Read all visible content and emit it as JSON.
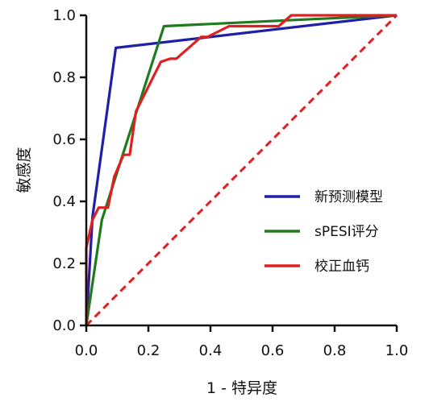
{
  "chart_data": {
    "type": "line",
    "title": "",
    "xlabel": "1 - 特异度",
    "ylabel": "敏感度",
    "xlim": [
      0.0,
      1.0
    ],
    "ylim": [
      0.0,
      1.0
    ],
    "x_ticks": [
      "0.0",
      "0.2",
      "0.4",
      "0.6",
      "0.8",
      "1.0"
    ],
    "y_ticks": [
      "0.0",
      "0.2",
      "0.4",
      "0.6",
      "0.8",
      "1.0"
    ],
    "grid": false,
    "legend_position": "lower-right",
    "reference_line": {
      "style": "dashed",
      "color": "#e02020",
      "points": [
        [
          0,
          0
        ],
        [
          1,
          1
        ]
      ]
    },
    "series": [
      {
        "name": "新预测模型",
        "color": "#1f1fa8",
        "points": [
          [
            0,
            0
          ],
          [
            0.02,
            0.35
          ],
          [
            0.095,
            0.895
          ],
          [
            1.0,
            1.0
          ]
        ]
      },
      {
        "name": "sPESI评分",
        "color": "#1e7b1e",
        "points": [
          [
            0,
            0
          ],
          [
            0.05,
            0.34
          ],
          [
            0.25,
            0.965
          ],
          [
            0.67,
            0.985
          ],
          [
            1.0,
            1.0
          ]
        ]
      },
      {
        "name": "校正血钙",
        "color": "#e02020",
        "points": [
          [
            0,
            0
          ],
          [
            0,
            0.25
          ],
          [
            0.02,
            0.34
          ],
          [
            0.04,
            0.38
          ],
          [
            0.07,
            0.38
          ],
          [
            0.09,
            0.48
          ],
          [
            0.12,
            0.55
          ],
          [
            0.14,
            0.55
          ],
          [
            0.16,
            0.69
          ],
          [
            0.24,
            0.85
          ],
          [
            0.27,
            0.86
          ],
          [
            0.29,
            0.86
          ],
          [
            0.37,
            0.93
          ],
          [
            0.39,
            0.93
          ],
          [
            0.46,
            0.965
          ],
          [
            0.6,
            0.965
          ],
          [
            0.62,
            0.965
          ],
          [
            0.66,
            1.0
          ],
          [
            1.0,
            1.0
          ]
        ]
      }
    ]
  }
}
